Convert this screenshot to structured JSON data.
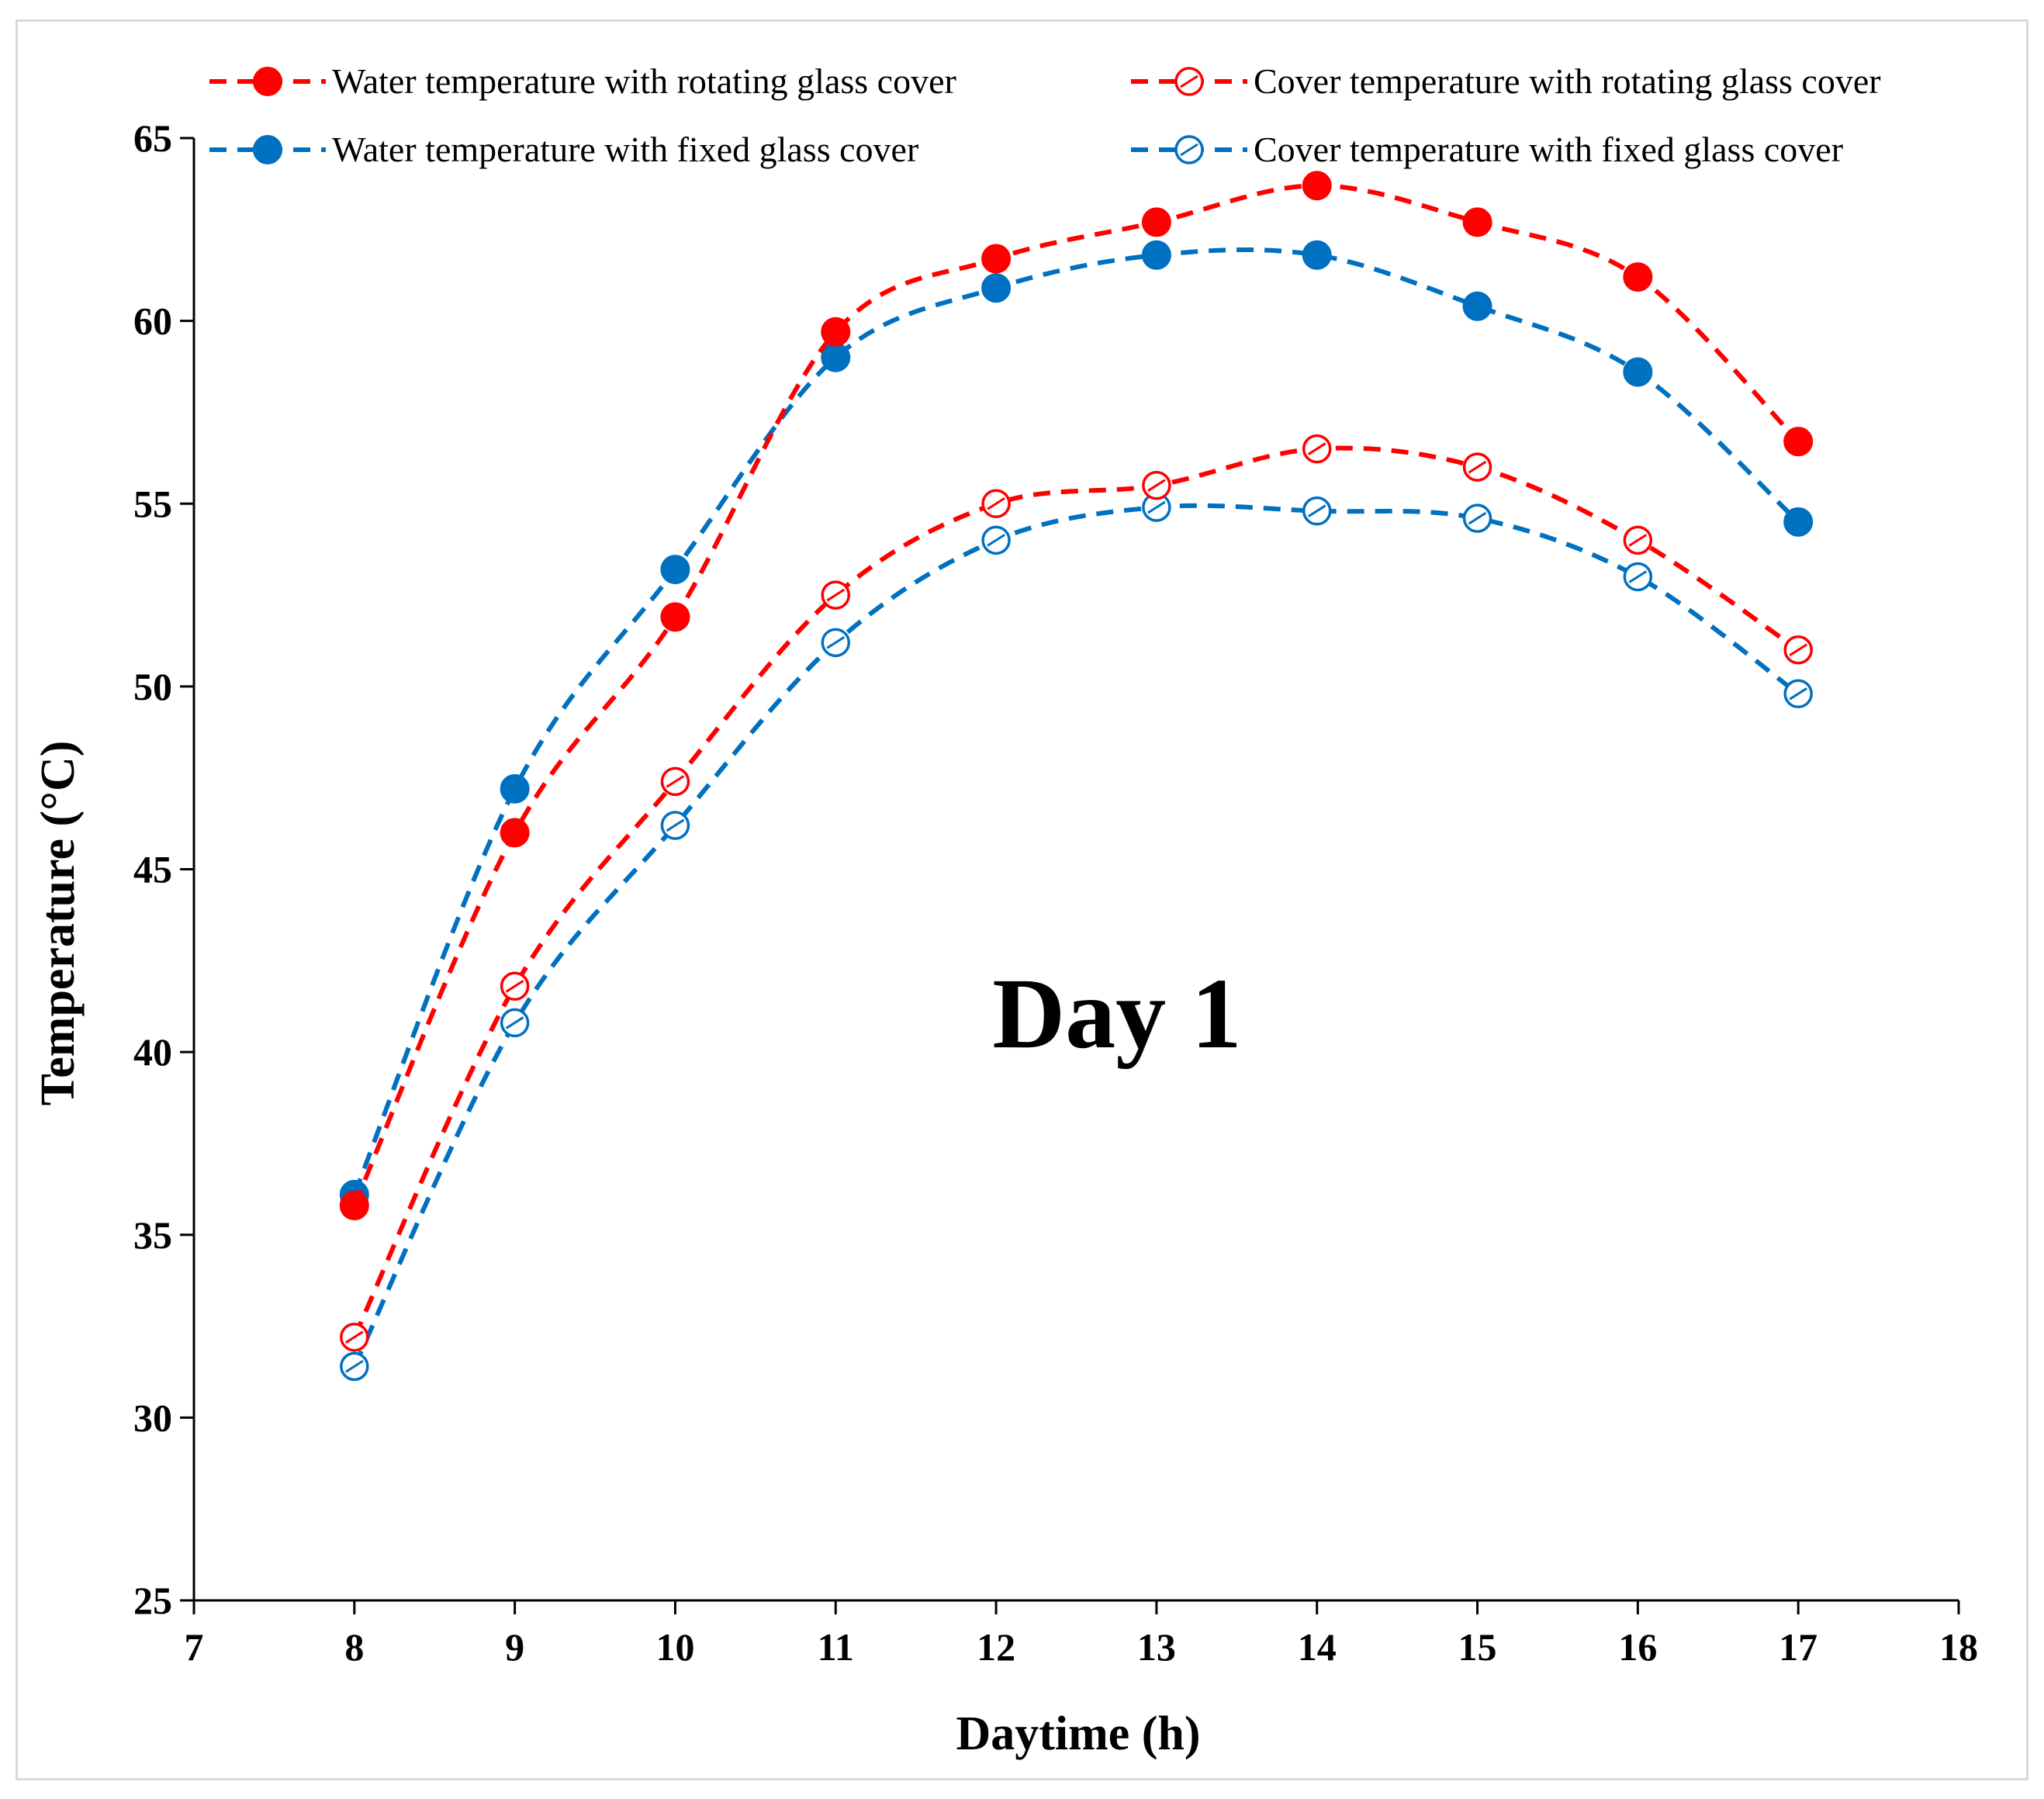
{
  "chart_data": {
    "type": "line",
    "title": "",
    "annotation": "Day 1",
    "xlabel": "Daytime (h)",
    "ylabel": "Temperature (°C)",
    "xlim": [
      7,
      18
    ],
    "ylim": [
      25,
      65
    ],
    "xticks": [
      "7",
      "8",
      "9",
      "10",
      "11",
      "12",
      "13",
      "14",
      "15",
      "16",
      "17",
      "18"
    ],
    "yticks": [
      "25",
      "30",
      "35",
      "40",
      "45",
      "50",
      "55",
      "60",
      "65"
    ],
    "grid": false,
    "legend_position": "top",
    "x": [
      8,
      9,
      10,
      11,
      12,
      13,
      14,
      15,
      16,
      17
    ],
    "series": [
      {
        "name": "Water temperature with rotating glass cover",
        "color": "#ff0000",
        "marker": "filled",
        "values": [
          35.8,
          46.0,
          51.9,
          59.7,
          61.7,
          62.7,
          63.7,
          62.7,
          61.2,
          56.7
        ]
      },
      {
        "name": "Cover temperature with rotating glass cover",
        "color": "#ff0000",
        "marker": "open",
        "values": [
          32.2,
          41.8,
          47.4,
          52.5,
          55.0,
          55.5,
          56.5,
          56.0,
          54.0,
          51.0
        ]
      },
      {
        "name": "Water temperature with fixed glass cover",
        "color": "#0070c0",
        "marker": "filled",
        "values": [
          36.1,
          47.2,
          53.2,
          59.0,
          60.9,
          61.8,
          61.8,
          60.4,
          58.6,
          54.5
        ]
      },
      {
        "name": "Cover temperature with fixed glass cover",
        "color": "#0070c0",
        "marker": "open",
        "values": [
          31.4,
          40.8,
          46.2,
          51.2,
          54.0,
          54.9,
          54.8,
          54.6,
          53.0,
          49.8
        ]
      }
    ]
  }
}
